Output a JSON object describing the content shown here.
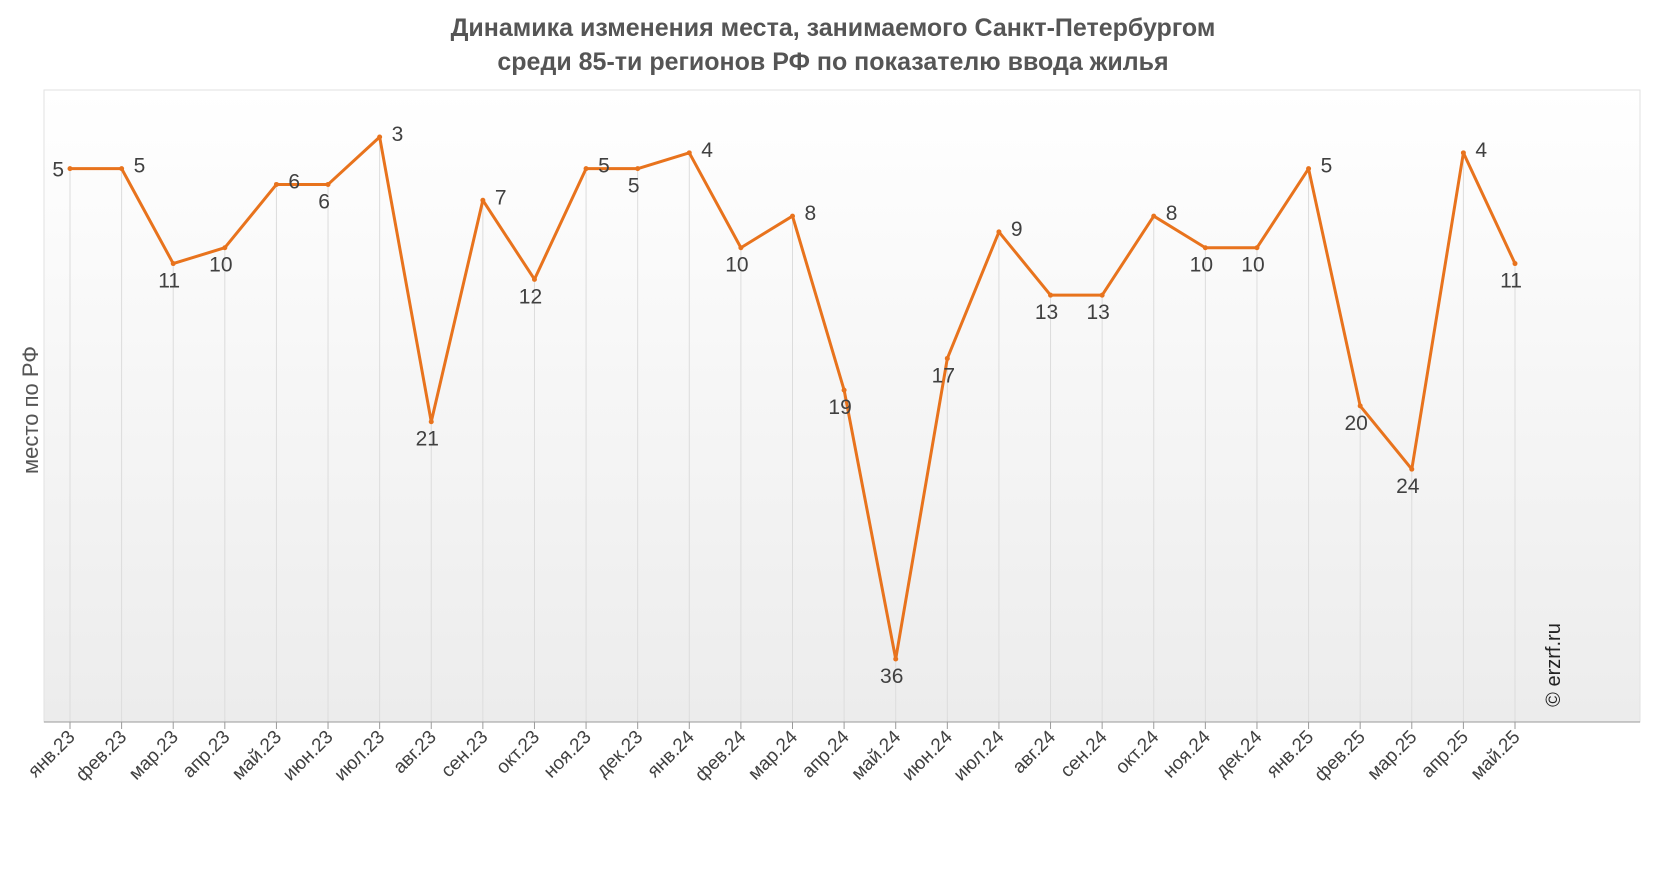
{
  "title_line1": "Динамика изменения места, занимаемого Санкт-Петербургом",
  "title_line2": "среди 85-ти регионов РФ по показателю ввода жилья",
  "credit": "© erzrf.ru",
  "colors": {
    "line": "#E8731D",
    "grid": "#dcdcdc",
    "text": "#404040"
  },
  "chart_data": {
    "type": "line",
    "title": "Динамика изменения места, занимаемого Санкт-Петербургом среди 85-ти регионов РФ по показателю ввода жилья",
    "xlabel": "",
    "ylabel": "место по РФ",
    "y_reversed": true,
    "ylim": [
      1,
      38
    ],
    "grid": "vertical",
    "categories": [
      "янв.23",
      "фев.23",
      "мар.23",
      "апр.23",
      "май.23",
      "июн.23",
      "июл.23",
      "авг.23",
      "сен.23",
      "окт.23",
      "ноя.23",
      "дек.23",
      "янв.24",
      "фев.24",
      "мар.24",
      "апр.24",
      "май.24",
      "июн.24",
      "июл.24",
      "авг.24",
      "сен.24",
      "окт.24",
      "ноя.24",
      "дек.24",
      "янв.25",
      "фев.25",
      "мар.25",
      "апр.25",
      "май.25"
    ],
    "series": [
      {
        "name": "",
        "values": [
          5,
          5,
          11,
          10,
          6,
          6,
          3,
          21,
          7,
          12,
          5,
          5,
          4,
          10,
          8,
          19,
          36,
          17,
          9,
          13,
          13,
          8,
          10,
          10,
          5,
          20,
          24,
          4,
          11
        ]
      }
    ]
  }
}
